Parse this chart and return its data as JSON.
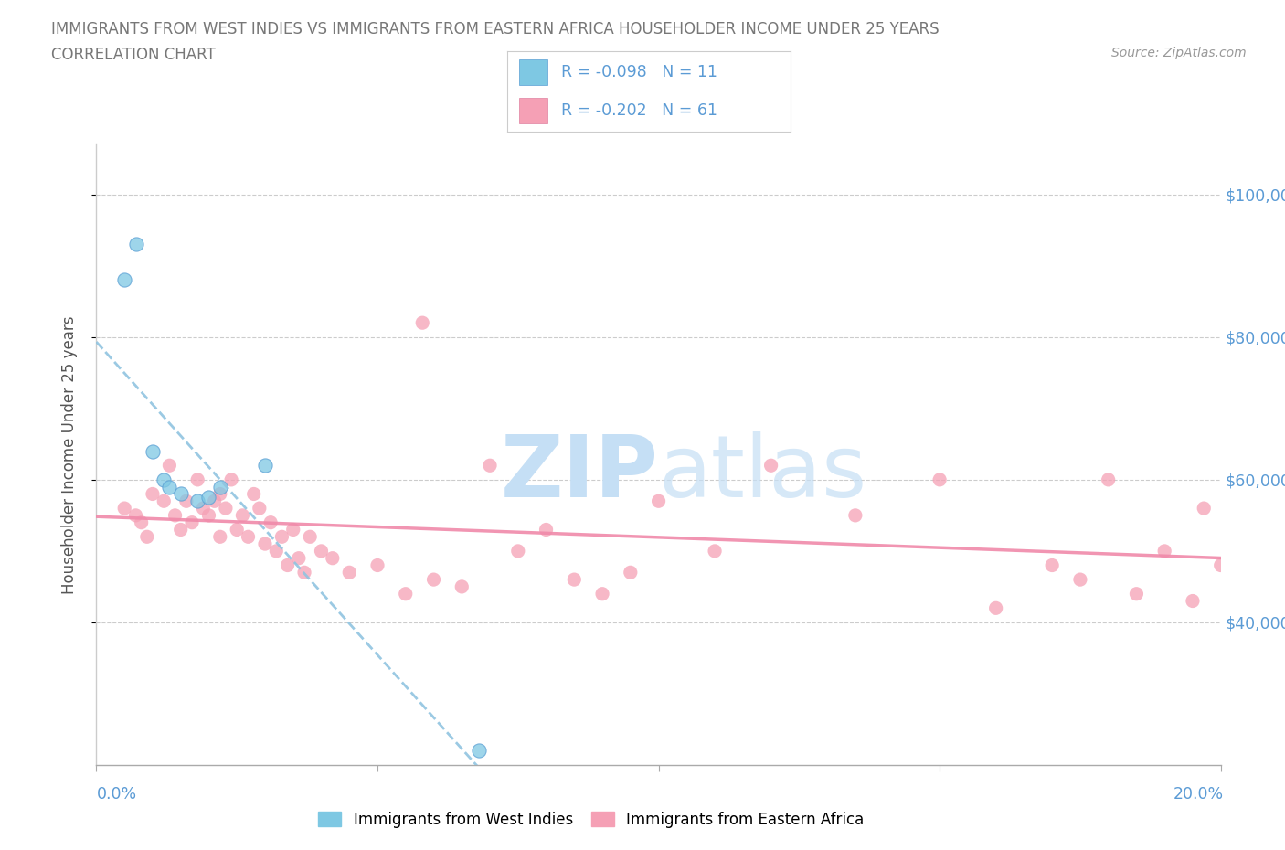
{
  "title_line1": "IMMIGRANTS FROM WEST INDIES VS IMMIGRANTS FROM EASTERN AFRICA HOUSEHOLDER INCOME UNDER 25 YEARS",
  "title_line2": "CORRELATION CHART",
  "source_text": "Source: ZipAtlas.com",
  "ylabel": "Householder Income Under 25 years",
  "xlim": [
    0.0,
    0.2
  ],
  "ylim": [
    20000,
    107000
  ],
  "ytick_vals": [
    40000,
    60000,
    80000,
    100000
  ],
  "ytick_labels": [
    "$40,000",
    "$60,000",
    "$80,000",
    "$100,000"
  ],
  "r1": "-0.098",
  "n1": "11",
  "r2": "-0.202",
  "n2": "61",
  "color_blue": "#7ec8e3",
  "color_pink": "#f5a0b5",
  "color_trendline_blue": "#90c4e0",
  "color_trendline_pink": "#f08aaa",
  "watermark_color": "#c5dff5",
  "grid_color": "#cccccc",
  "title_color": "#777777",
  "ytick_color": "#5b9bd5",
  "legend_label1": "Immigrants from West Indies",
  "legend_label2": "Immigrants from Eastern Africa",
  "wi_x": [
    0.005,
    0.007,
    0.01,
    0.012,
    0.013,
    0.015,
    0.018,
    0.02,
    0.022,
    0.03,
    0.068
  ],
  "wi_y": [
    88000,
    93000,
    64000,
    60000,
    59000,
    58000,
    57000,
    57500,
    59000,
    62000,
    22000
  ],
  "ea_x": [
    0.005,
    0.007,
    0.008,
    0.009,
    0.01,
    0.012,
    0.013,
    0.014,
    0.015,
    0.016,
    0.017,
    0.018,
    0.019,
    0.02,
    0.021,
    0.022,
    0.022,
    0.023,
    0.024,
    0.025,
    0.026,
    0.027,
    0.028,
    0.029,
    0.03,
    0.031,
    0.032,
    0.033,
    0.034,
    0.035,
    0.036,
    0.037,
    0.038,
    0.04,
    0.042,
    0.045,
    0.05,
    0.055,
    0.058,
    0.06,
    0.065,
    0.07,
    0.075,
    0.08,
    0.085,
    0.09,
    0.095,
    0.1,
    0.11,
    0.12,
    0.135,
    0.15,
    0.16,
    0.17,
    0.175,
    0.18,
    0.185,
    0.19,
    0.195,
    0.197,
    0.2
  ],
  "ea_y": [
    56000,
    55000,
    54000,
    52000,
    58000,
    57000,
    62000,
    55000,
    53000,
    57000,
    54000,
    60000,
    56000,
    55000,
    57000,
    58000,
    52000,
    56000,
    60000,
    53000,
    55000,
    52000,
    58000,
    56000,
    51000,
    54000,
    50000,
    52000,
    48000,
    53000,
    49000,
    47000,
    52000,
    50000,
    49000,
    47000,
    48000,
    44000,
    82000,
    46000,
    45000,
    62000,
    50000,
    53000,
    46000,
    44000,
    47000,
    57000,
    50000,
    62000,
    55000,
    60000,
    42000,
    48000,
    46000,
    60000,
    44000,
    50000,
    43000,
    56000,
    48000
  ]
}
